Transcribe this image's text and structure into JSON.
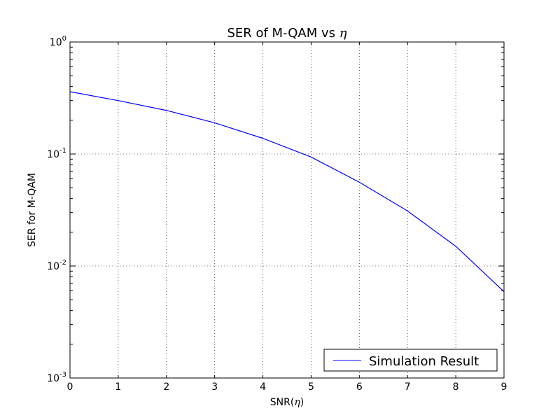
{
  "chart_data": {
    "type": "line",
    "title_main": "SER of M-QAM vs ",
    "title_symbol": "η",
    "xlabel_main": "SNR(",
    "xlabel_symbol": "η",
    "xlabel_end": ")",
    "ylabel": "SER for M-QAM",
    "x_ticks": [
      "0",
      "1",
      "2",
      "3",
      "4",
      "5",
      "6",
      "7",
      "8",
      "9"
    ],
    "y_ticks": [
      {
        "base": "10",
        "exp": "0"
      },
      {
        "base": "10",
        "exp": "-1"
      },
      {
        "base": "10",
        "exp": "-2"
      },
      {
        "base": "10",
        "exp": "-3"
      }
    ],
    "xlim": [
      0,
      9
    ],
    "ylim": [
      0.001,
      1
    ],
    "yscale": "log",
    "grid": true,
    "legend_position": "lower-right",
    "series": [
      {
        "name": "Simulation Result",
        "color": "#0000ff",
        "x": [
          0,
          1,
          2,
          3,
          4,
          5,
          6,
          7,
          8,
          9
        ],
        "y": [
          0.36,
          0.3,
          0.245,
          0.19,
          0.138,
          0.094,
          0.056,
          0.031,
          0.015,
          0.0059
        ]
      }
    ]
  }
}
